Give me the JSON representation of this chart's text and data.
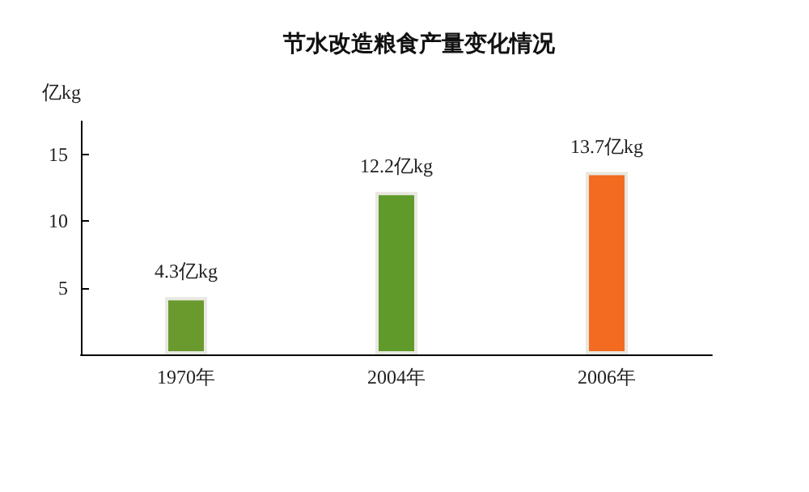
{
  "chart_data": {
    "type": "bar",
    "title": "节水改造粮食产量变化情况",
    "ylabel": "亿kg",
    "categories": [
      "1970年",
      "2004年",
      "2006年"
    ],
    "values": [
      4.3,
      12.2,
      13.7
    ],
    "colors": [
      "#6a9a2e",
      "#5f9a2a",
      "#f26b21"
    ],
    "value_labels": [
      "4.3亿kg",
      "12.2亿kg",
      "13.7亿kg"
    ],
    "ylim": [
      0,
      17.5
    ],
    "yticks": [
      5,
      10,
      15
    ]
  }
}
